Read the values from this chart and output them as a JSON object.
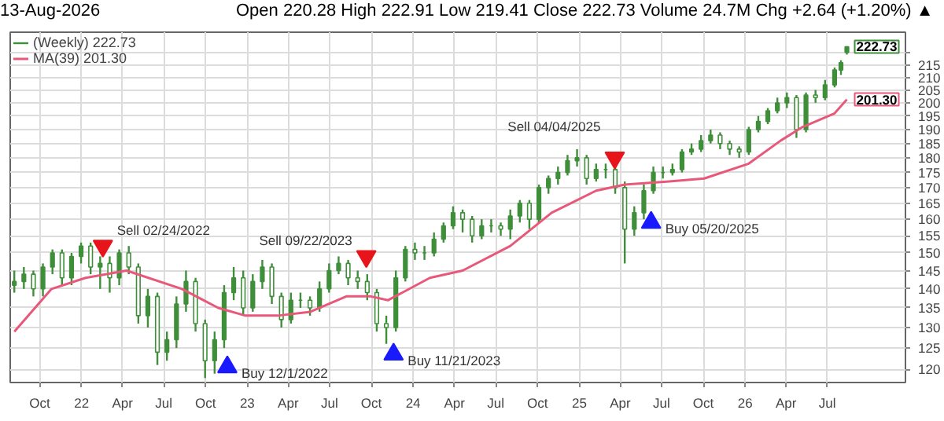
{
  "chart_data": {
    "type": "candlestick",
    "title": "13-Aug-2026",
    "subtitle": "Open 220.28  High 222.91  Low 219.41  Close 222.73  Volume 24.7M  Chg +2.64 (+1.20%) ▲",
    "log": true,
    "grid": true,
    "legend": "top left",
    "xlim": [
      "2021-07-28",
      "2026-12-20"
    ],
    "ylim": [
      117,
      229
    ],
    "xticks": [
      {
        "value": "2021-10-01",
        "label": "Oct"
      },
      {
        "value": "2022-01-01",
        "label": "22"
      },
      {
        "value": "2022-04-01",
        "label": "Apr"
      },
      {
        "value": "2022-07-01",
        "label": "Jul"
      },
      {
        "value": "2022-10-01",
        "label": "Oct"
      },
      {
        "value": "2023-01-01",
        "label": "23"
      },
      {
        "value": "2023-04-01",
        "label": "Apr"
      },
      {
        "value": "2023-07-01",
        "label": "Jul"
      },
      {
        "value": "2023-10-01",
        "label": "Oct"
      },
      {
        "value": "2024-01-01",
        "label": "24"
      },
      {
        "value": "2024-04-01",
        "label": "Apr"
      },
      {
        "value": "2024-07-01",
        "label": "Jul"
      },
      {
        "value": "2024-10-01",
        "label": "Oct"
      },
      {
        "value": "2025-01-01",
        "label": "25"
      },
      {
        "value": "2025-04-01",
        "label": "Apr"
      },
      {
        "value": "2025-07-01",
        "label": "Jul"
      },
      {
        "value": "2025-10-01",
        "label": "Oct"
      },
      {
        "value": "2026-01-01",
        "label": "26"
      },
      {
        "value": "2026-04-01",
        "label": "Apr"
      },
      {
        "value": "2026-07-01",
        "label": "Jul"
      }
    ],
    "yticks": [
      120,
      125,
      130,
      135,
      140,
      145,
      150,
      155,
      160,
      165,
      170,
      175,
      180,
      185,
      190,
      195,
      200,
      205,
      210,
      215,
      {
        "value": 220,
        "label": null
      }
    ],
    "series": [
      {
        "name": "(Weekly) 222.73",
        "color": "#3f8f3a",
        "x": [
          "2021-08-06",
          "2021-08-27",
          "2021-09-17",
          "2021-10-08",
          "2021-10-29",
          "2021-11-19",
          "2021-12-10",
          "2021-12-31",
          "2022-01-21",
          "2022-02-11",
          "2022-03-04",
          "2022-03-25",
          "2022-04-15",
          "2022-05-06",
          "2022-05-27",
          "2022-06-17",
          "2022-07-08",
          "2022-07-29",
          "2022-08-19",
          "2022-09-09",
          "2022-09-30",
          "2022-10-21",
          "2022-11-11",
          "2022-12-02",
          "2022-12-23",
          "2023-01-13",
          "2023-02-03",
          "2023-02-24",
          "2023-03-17",
          "2023-04-07",
          "2023-04-28",
          "2023-05-19",
          "2023-06-09",
          "2023-06-30",
          "2023-07-21",
          "2023-08-11",
          "2023-09-01",
          "2023-09-22",
          "2023-10-13",
          "2023-11-03",
          "2023-11-24",
          "2023-12-15",
          "2024-01-05",
          "2024-01-26",
          "2024-02-16",
          "2024-03-08",
          "2024-03-29",
          "2024-04-19",
          "2024-05-10",
          "2024-05-31",
          "2024-06-21",
          "2024-07-12",
          "2024-08-02",
          "2024-08-23",
          "2024-09-13",
          "2024-10-04",
          "2024-10-25",
          "2024-11-15",
          "2024-12-06",
          "2024-12-27",
          "2025-01-17",
          "2025-02-07",
          "2025-02-28",
          "2025-03-21",
          "2025-04-11",
          "2025-05-02",
          "2025-05-23",
          "2025-06-13",
          "2025-07-04",
          "2025-07-25",
          "2025-08-15",
          "2025-09-05",
          "2025-09-26",
          "2025-10-17",
          "2025-11-07",
          "2025-11-28",
          "2025-12-19",
          "2026-01-09",
          "2026-01-30",
          "2026-02-20",
          "2026-03-13",
          "2026-04-03",
          "2026-04-24",
          "2026-05-15",
          "2026-06-05",
          "2026-06-26",
          "2026-07-17",
          "2026-07-31",
          "2026-08-13"
        ],
        "ohlc": [
          [
            141,
            145,
            139,
            142
          ],
          [
            142,
            146,
            140,
            144
          ],
          [
            144,
            145,
            138,
            140
          ],
          [
            140,
            147,
            138,
            146
          ],
          [
            146,
            151,
            144,
            150
          ],
          [
            150,
            151,
            141,
            143
          ],
          [
            143,
            150,
            141,
            149
          ],
          [
            149,
            153,
            147,
            152
          ],
          [
            152,
            153,
            144,
            146
          ],
          [
            146,
            149,
            140,
            147
          ],
          [
            147,
            149,
            139,
            143
          ],
          [
            143,
            151,
            141,
            150
          ],
          [
            150,
            152,
            144,
            146
          ],
          [
            146,
            147,
            131,
            133
          ],
          [
            133,
            140,
            130,
            138
          ],
          [
            138,
            139,
            121,
            124
          ],
          [
            124,
            129,
            122,
            127
          ],
          [
            127,
            138,
            125,
            136
          ],
          [
            136,
            145,
            134,
            142
          ],
          [
            142,
            143,
            129,
            131
          ],
          [
            131,
            132,
            118,
            122
          ],
          [
            122,
            129,
            119,
            127
          ],
          [
            127,
            141,
            125,
            139
          ],
          [
            139,
            146,
            137,
            143
          ],
          [
            143,
            145,
            133,
            135
          ],
          [
            135,
            144,
            134,
            142
          ],
          [
            142,
            148,
            140,
            146
          ],
          [
            146,
            147,
            136,
            138
          ],
          [
            138,
            139,
            130,
            132
          ],
          [
            132,
            139,
            131,
            137
          ],
          [
            137,
            139,
            135,
            137
          ],
          [
            137,
            138,
            133,
            135
          ],
          [
            135,
            142,
            134,
            140
          ],
          [
            140,
            147,
            139,
            145
          ],
          [
            145,
            149,
            144,
            147
          ],
          [
            147,
            148,
            141,
            143
          ],
          [
            143,
            145,
            140,
            142
          ],
          [
            142,
            144,
            137,
            139
          ],
          [
            139,
            140,
            129,
            131
          ],
          [
            131,
            133,
            126,
            130
          ],
          [
            130,
            145,
            129,
            143
          ],
          [
            143,
            152,
            142,
            151
          ],
          [
            151,
            153,
            148,
            150
          ],
          [
            150,
            152,
            148,
            150
          ],
          [
            150,
            156,
            149,
            154
          ],
          [
            154,
            159,
            153,
            158
          ],
          [
            158,
            164,
            157,
            162
          ],
          [
            162,
            163,
            156,
            160
          ],
          [
            160,
            161,
            153,
            155
          ],
          [
            155,
            160,
            154,
            158
          ],
          [
            158,
            160,
            156,
            158
          ],
          [
            158,
            159,
            155,
            157
          ],
          [
            157,
            163,
            154,
            161
          ],
          [
            161,
            166,
            159,
            165
          ],
          [
            165,
            166,
            157,
            160
          ],
          [
            160,
            171,
            159,
            170
          ],
          [
            170,
            174,
            168,
            173
          ],
          [
            173,
            177,
            171,
            175
          ],
          [
            175,
            181,
            174,
            179
          ],
          [
            179,
            183,
            177,
            180
          ],
          [
            180,
            181,
            171,
            173
          ],
          [
            173,
            178,
            172,
            176
          ],
          [
            176,
            178,
            173,
            176
          ],
          [
            176,
            177,
            168,
            170
          ],
          [
            170,
            172,
            147,
            157
          ],
          [
            157,
            164,
            155,
            162
          ],
          [
            162,
            171,
            160,
            169
          ],
          [
            169,
            177,
            168,
            175
          ],
          [
            175,
            177,
            173,
            175
          ],
          [
            175,
            178,
            174,
            176
          ],
          [
            176,
            183,
            175,
            182
          ],
          [
            182,
            185,
            181,
            183
          ],
          [
            183,
            188,
            182,
            186
          ],
          [
            186,
            190,
            185,
            188
          ],
          [
            188,
            189,
            183,
            185
          ],
          [
            185,
            186,
            181,
            183
          ],
          [
            183,
            184,
            180,
            182
          ],
          [
            182,
            191,
            181,
            190
          ],
          [
            190,
            195,
            189,
            193
          ],
          [
            193,
            198,
            192,
            197
          ],
          [
            197,
            202,
            196,
            200
          ],
          [
            200,
            204,
            198,
            202
          ],
          [
            202,
            203,
            187,
            190
          ],
          [
            190,
            204,
            189,
            203
          ],
          [
            203,
            205,
            200,
            202
          ],
          [
            202,
            209,
            201,
            207
          ],
          [
            207,
            214,
            206,
            213
          ],
          [
            213,
            217,
            211,
            216
          ],
          [
            220.28,
            222.91,
            219.41,
            222.73
          ]
        ]
      },
      {
        "type": "line",
        "name": "MA(39) 201.30",
        "color": "#e8587a",
        "x": [
          "2021-08-06",
          "2021-10-27",
          "2022-01-10",
          "2022-04-10",
          "2022-08-10",
          "2022-10-29",
          "2022-12-28",
          "2023-03-09",
          "2023-05-20",
          "2023-08-07",
          "2023-09-30",
          "2023-11-07",
          "2024-02-07",
          "2024-04-19",
          "2024-08-02",
          "2024-11-01",
          "2025-02-07",
          "2025-04-11",
          "2025-07-18",
          "2025-10-03",
          "2026-01-09",
          "2026-03-20",
          "2026-05-08",
          "2026-07-17",
          "2026-08-13"
        ],
        "values": [
          129,
          140,
          143,
          145,
          140,
          135,
          133,
          133,
          134,
          138,
          138,
          137,
          143,
          145,
          152,
          162,
          169,
          171,
          172,
          173,
          178,
          186,
          191,
          196,
          201.3
        ]
      },
      {
        "type": "scatter",
        "marker": "triangle",
        "color": "#e8141b",
        "x": [
          "2022-02-17",
          "2023-09-20",
          "2025-03-20"
        ],
        "values": [
          152,
          149,
          180
        ]
      },
      {
        "type": "scatter",
        "marker": "triangle",
        "color": "#1a1aff",
        "x": [
          "2022-11-18",
          "2023-11-19",
          "2025-06-08"
        ],
        "values": [
          120.5,
          123.5,
          159
        ]
      }
    ],
    "annotations": [
      {
        "text": "Sell 02/24/2022",
        "x": "2022-02-17",
        "y": 152
      },
      {
        "text": "Sell 09/22/2023",
        "x": "2023-09-20",
        "y": 149
      },
      {
        "text": "Buy 12/1/2022",
        "x": "2022-11-18",
        "y": 120.5
      },
      {
        "text": "Buy 11/21/2023",
        "x": "2023-11-19",
        "y": 123.5
      },
      {
        "text": "Sell 04/04/2025",
        "x": "2025-03-20",
        "y": 180
      },
      {
        "text": "Buy 05/20/2025",
        "x": "2025-06-08",
        "y": 159
      },
      {
        "text": "222.73",
        "x": "2026-08-13",
        "y": 222.73
      },
      {
        "text": "201.30",
        "x": "2026-08-13",
        "y": 201.3
      }
    ]
  }
}
